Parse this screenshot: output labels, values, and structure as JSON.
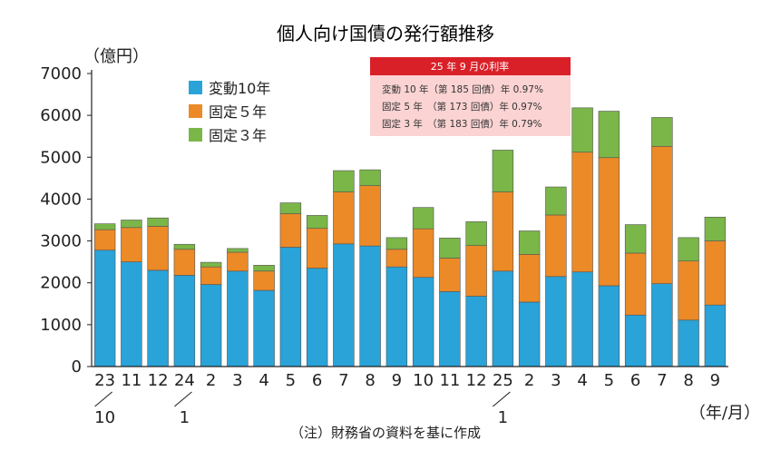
{
  "chart_data": {
    "type": "bar",
    "stacked": true,
    "title": "個人向け国債の発行額推移",
    "unit_label": "（億円）",
    "xunit_label": "（年/月）",
    "note": "（注）財務省の資料を基に作成",
    "ylim": [
      0,
      7000
    ],
    "yticks": [
      0,
      1000,
      2000,
      3000,
      4000,
      5000,
      6000,
      7000
    ],
    "grid": false,
    "legend_placement": "top-left",
    "categories": [
      "23/10",
      "11",
      "12",
      "24/1",
      "2",
      "3",
      "4",
      "5",
      "6",
      "7",
      "8",
      "9",
      "10",
      "11",
      "12",
      "25/1",
      "2",
      "3",
      "4",
      "5",
      "6",
      "7",
      "8",
      "9"
    ],
    "tick_labels": [
      "23",
      "11",
      "12",
      "24",
      "2",
      "3",
      "4",
      "5",
      "6",
      "7",
      "8",
      "9",
      "10",
      "11",
      "12",
      "25",
      "2",
      "3",
      "4",
      "5",
      "6",
      "7",
      "8",
      "9"
    ],
    "year_marks": [
      {
        "index": 0,
        "label": "10"
      },
      {
        "index": 3,
        "label": "1"
      },
      {
        "index": 15,
        "label": "1"
      }
    ],
    "series": [
      {
        "name": "変動10年",
        "color": "#29a3d8",
        "values": [
          2780,
          2500,
          2300,
          2180,
          1960,
          2280,
          1820,
          2850,
          2350,
          2930,
          2880,
          2380,
          2130,
          1790,
          1680,
          2280,
          1540,
          2150,
          2260,
          1930,
          1230,
          1980,
          1110,
          1470
        ]
      },
      {
        "name": "固定５年",
        "color": "#ec8a27",
        "values": [
          490,
          820,
          1050,
          620,
          420,
          450,
          460,
          800,
          950,
          1240,
          1440,
          420,
          1160,
          800,
          1210,
          1890,
          1140,
          1470,
          2860,
          3060,
          1480,
          3280,
          1410,
          1530
        ]
      },
      {
        "name": "固定３年",
        "color": "#7ab648",
        "values": [
          140,
          180,
          200,
          120,
          110,
          90,
          140,
          260,
          310,
          510,
          380,
          280,
          510,
          480,
          570,
          1000,
          560,
          670,
          1060,
          1110,
          680,
          690,
          560,
          570
        ]
      }
    ],
    "info_box": {
      "header": "25 年 9 月の利率",
      "rows": [
        "変動 10 年（第 185 回債）年 0.97%",
        "固定 5 年　（第 173 回債）年 0.97%",
        "固定 3 年　（第 183 回債）年 0.79%"
      ]
    }
  }
}
